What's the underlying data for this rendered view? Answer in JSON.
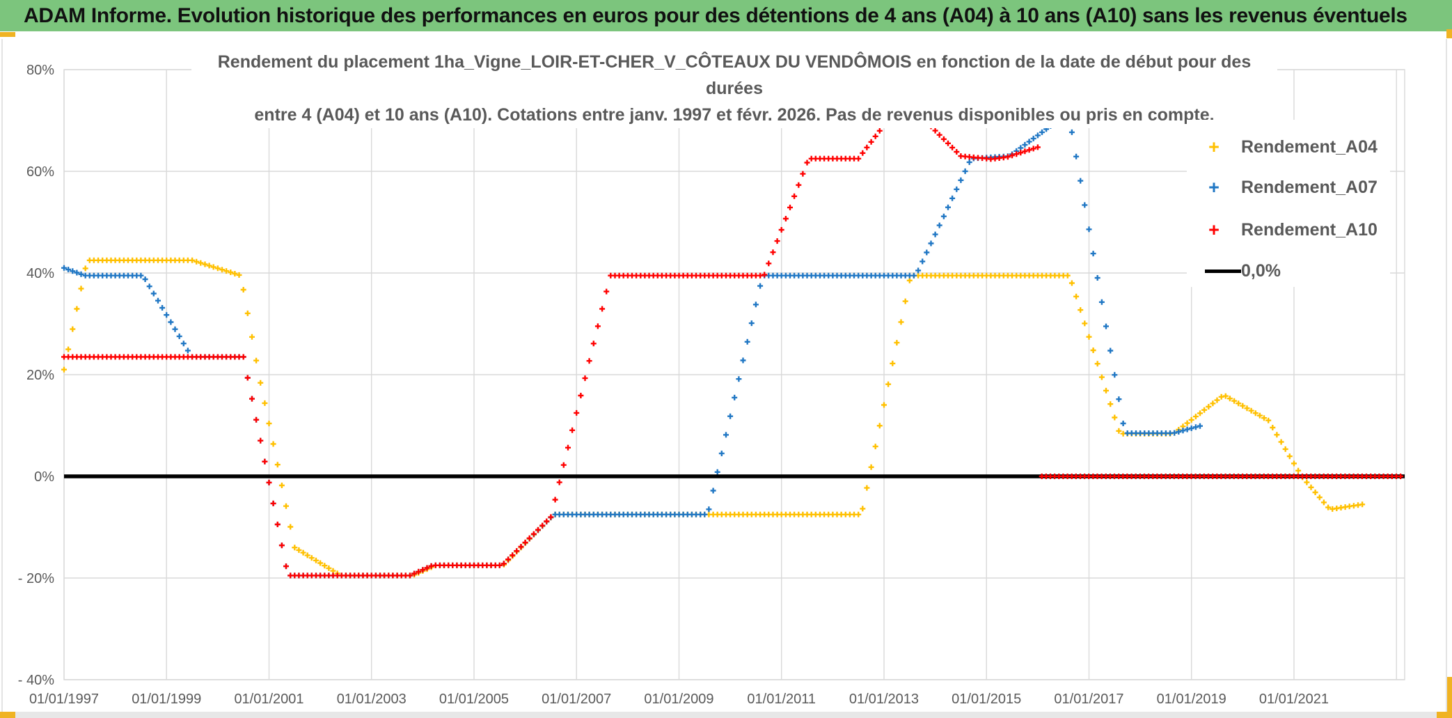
{
  "header": {
    "title": "ADAM Informe. Evolution historique des performances en euros pour des détentions de 4 ans (A04) à 10 ans (A10) sans les revenus éventuels",
    "background_color": "#7CC57D"
  },
  "accent_color": "#F0B323",
  "chart": {
    "title_line1": "Rendement du placement 1ha_Vigne_LOIR-ET-CHER_V_CÔTEAUX DU VENDÔMOIS en fonction de la date de début pour des durées",
    "title_line2": "entre 4 (A04) et 10 ans (A10). Cotations entre janv. 1997 et févr. 2026. Pas de revenus disponibles ou pris en compte.",
    "text_color": "#595959",
    "gridline_color": "#d9d9d9",
    "legend": [
      {
        "label": "Rendement_A04",
        "color": "#FFC000",
        "marker": "plus"
      },
      {
        "label": "Rendement_A07",
        "color": "#2077C4",
        "marker": "plus"
      },
      {
        "label": "Rendement_A10",
        "color": "#FF0000",
        "marker": "plus"
      },
      {
        "label": "0,0%",
        "color": "#000000",
        "marker": "line"
      }
    ]
  },
  "chart_data": {
    "type": "scatter",
    "marker": "plus",
    "sampling": "monthly",
    "x_axis": {
      "start_year": 1997,
      "end_year": 2023.16,
      "gridline_years": [
        1997,
        1999,
        2001,
        2003,
        2005,
        2007,
        2009,
        2011,
        2013,
        2015,
        2017,
        2019,
        2021,
        2023
      ],
      "tick_labels": [
        {
          "year": 1997,
          "label": "01/01/1997"
        },
        {
          "year": 1999,
          "label": "01/01/1999"
        },
        {
          "year": 2001,
          "label": "01/01/2001"
        },
        {
          "year": 2003,
          "label": "01/01/2003"
        },
        {
          "year": 2005,
          "label": "01/01/2005"
        },
        {
          "year": 2007,
          "label": "01/01/2007"
        },
        {
          "year": 2009,
          "label": "01/01/2009"
        },
        {
          "year": 2011,
          "label": "01/01/2011"
        },
        {
          "year": 2013,
          "label": "01/01/2013"
        },
        {
          "year": 2015,
          "label": "01/01/2015"
        },
        {
          "year": 2017,
          "label": "01/01/2017"
        },
        {
          "year": 2019,
          "label": "01/01/2019"
        },
        {
          "year": 2021,
          "label": "01/01/2021"
        }
      ]
    },
    "y_axis": {
      "min": -40,
      "max": 80,
      "step": 20,
      "grid": true,
      "tick_labels": [
        {
          "value": 80,
          "label": "80%"
        },
        {
          "value": 60,
          "label": "60%"
        },
        {
          "value": 40,
          "label": "40%"
        },
        {
          "value": 20,
          "label": "20%"
        },
        {
          "value": 0,
          "label": "0%"
        },
        {
          "value": -20,
          "label": "- 20%"
        },
        {
          "value": -40,
          "label": "- 40%"
        }
      ]
    },
    "zero_line": {
      "label": "0,0%",
      "value": 0,
      "color": "#000000",
      "x_start": 1997,
      "x_end": 2023.16
    },
    "series": [
      {
        "name": "Rendement_A04",
        "color": "#FFC000",
        "unit": "percent",
        "segments": [
          [
            [
              1997.0,
              21
            ],
            [
              1997.45,
              42.5
            ],
            [
              1999.5,
              42.5
            ],
            [
              2000.45,
              39.5
            ],
            [
              2000.8,
              20
            ],
            [
              2001.05,
              8
            ],
            [
              2001.5,
              -14
            ],
            [
              2002.4,
              -19.5
            ],
            [
              2003.8,
              -19.5
            ],
            [
              2004.25,
              -17.5
            ],
            [
              2005.57,
              -17.5
            ],
            [
              2006.56,
              -7.5
            ],
            [
              2012.56,
              -7.5
            ],
            [
              2013.52,
              39.5
            ],
            [
              2016.62,
              39.5
            ],
            [
              2017.6,
              8.4
            ],
            [
              2018.65,
              8.4
            ],
            [
              2019.63,
              16
            ],
            [
              2020.5,
              11
            ],
            [
              2021.15,
              0
            ],
            [
              2021.7,
              -6.5
            ],
            [
              2022.35,
              -5.5
            ]
          ]
        ]
      },
      {
        "name": "Rendement_A07",
        "color": "#2077C4",
        "unit": "percent",
        "segments": [
          [
            [
              1997.0,
              41
            ],
            [
              1997.4,
              39.5
            ],
            [
              1998.54,
              39.5
            ],
            [
              1999.49,
              23.5
            ],
            [
              2000.5,
              23.5
            ],
            [
              2001.37,
              -19.5
            ],
            [
              2003.75,
              -19.5
            ],
            [
              2004.2,
              -17.5
            ],
            [
              2005.55,
              -17.5
            ],
            [
              2006.56,
              -7.5
            ],
            [
              2009.56,
              -7.5
            ],
            [
              2010.63,
              39.5
            ],
            [
              2013.62,
              39.5
            ],
            [
              2014.7,
              62.5
            ],
            [
              2015.45,
              63
            ],
            [
              2016.6,
              71.5
            ],
            [
              2017.7,
              8.5
            ],
            [
              2018.65,
              8.5
            ],
            [
              2019.2,
              10
            ]
          ]
        ]
      },
      {
        "name": "Rendement_A10",
        "color": "#FF0000",
        "unit": "percent",
        "segments": [
          [
            [
              1997.0,
              23.5
            ],
            [
              2000.5,
              23.5
            ],
            [
              2001.37,
              -19.5
            ],
            [
              2003.75,
              -19.5
            ],
            [
              2004.2,
              -17.5
            ],
            [
              2005.55,
              -17.5
            ],
            [
              2006.5,
              -8
            ],
            [
              2007.66,
              39.5
            ],
            [
              2010.66,
              39.5
            ],
            [
              2011.53,
              62.5
            ],
            [
              2012.5,
              62.5
            ],
            [
              2013.3,
              73
            ],
            [
              2013.5,
              73
            ],
            [
              2014.5,
              63
            ],
            [
              2015.1,
              62.4
            ],
            [
              2015.4,
              62.8
            ],
            [
              2016.08,
              65
            ]
          ],
          [
            [
              2016.08,
              0
            ],
            [
              2023.1,
              0
            ]
          ]
        ]
      }
    ]
  }
}
